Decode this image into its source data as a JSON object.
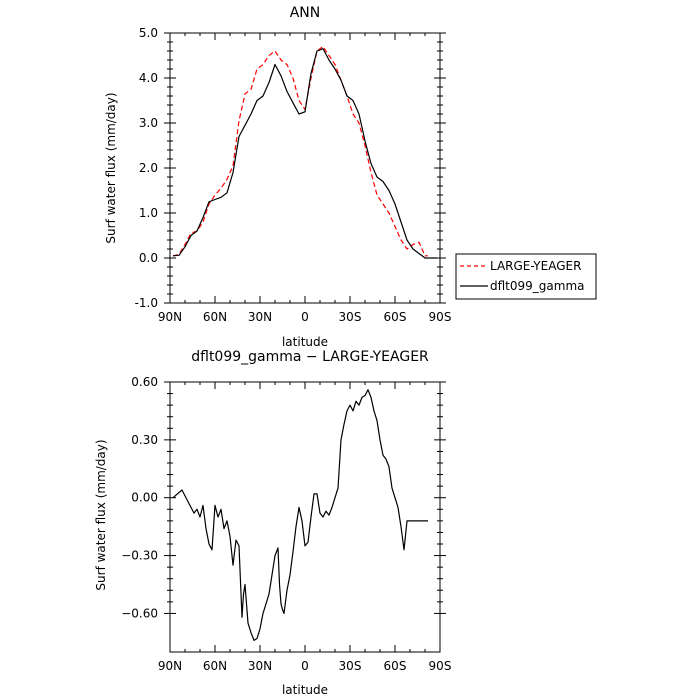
{
  "chart_data": [
    {
      "type": "line",
      "title": "ANN",
      "xlabel": "latitude",
      "ylabel": "Surf water flux (mm/day)",
      "xlim": [
        90,
        -90
      ],
      "ylim": [
        -1.0,
        5.0
      ],
      "x_ticks": [
        90,
        60,
        30,
        0,
        -30,
        -60,
        -90
      ],
      "x_tick_labels": [
        "90N",
        "60N",
        "30N",
        "0",
        "30S",
        "60S",
        "90S"
      ],
      "y_ticks": [
        -1.0,
        0.0,
        1.0,
        2.0,
        3.0,
        4.0,
        5.0
      ],
      "y_tick_labels": [
        "-1.0",
        "0.0",
        "1.0",
        "2.0",
        "3.0",
        "4.0",
        "5.0"
      ],
      "grid": false,
      "legend_position": "right, outside plot",
      "series": [
        {
          "name": "LARGE-YEAGER",
          "color": "#ff0000",
          "style": "dashed",
          "x": [
            88,
            84,
            80,
            76,
            72,
            68,
            64,
            60,
            56,
            52,
            48,
            44,
            40,
            36,
            32,
            28,
            24,
            20,
            16,
            12,
            8,
            4,
            0,
            -4,
            -8,
            -12,
            -16,
            -20,
            -24,
            -28,
            -32,
            -36,
            -40,
            -44,
            -48,
            -52,
            -56,
            -60,
            -64,
            -68,
            -72,
            -76,
            -80,
            -82
          ],
          "values": [
            0.05,
            0.08,
            0.3,
            0.55,
            0.6,
            0.8,
            1.2,
            1.4,
            1.55,
            1.75,
            2.05,
            3.05,
            3.65,
            3.75,
            4.2,
            4.3,
            4.5,
            4.6,
            4.4,
            4.3,
            4.0,
            3.5,
            3.3,
            4.0,
            4.6,
            4.7,
            4.5,
            4.3,
            3.95,
            3.6,
            3.2,
            3.0,
            2.5,
            1.9,
            1.4,
            1.2,
            1.0,
            0.7,
            0.4,
            0.2,
            0.3,
            0.35,
            0.05,
            0.05
          ]
        },
        {
          "name": "dflt099_gamma",
          "color": "#000000",
          "style": "solid",
          "x": [
            88,
            84,
            80,
            76,
            72,
            68,
            64,
            60,
            56,
            52,
            48,
            44,
            40,
            36,
            32,
            28,
            24,
            20,
            16,
            12,
            8,
            4,
            0,
            -4,
            -8,
            -12,
            -16,
            -20,
            -24,
            -28,
            -32,
            -36,
            -40,
            -44,
            -48,
            -52,
            -56,
            -60,
            -64,
            -68,
            -72,
            -76,
            -80,
            -84,
            -88
          ],
          "values": [
            0.05,
            0.06,
            0.25,
            0.5,
            0.6,
            0.9,
            1.25,
            1.3,
            1.35,
            1.45,
            1.9,
            2.7,
            2.95,
            3.2,
            3.5,
            3.6,
            3.9,
            4.3,
            4.05,
            3.7,
            3.45,
            3.2,
            3.25,
            4.1,
            4.6,
            4.65,
            4.4,
            4.2,
            3.95,
            3.6,
            3.5,
            3.2,
            2.6,
            2.1,
            1.8,
            1.7,
            1.5,
            1.2,
            0.8,
            0.4,
            0.2,
            0.1,
            0.0,
            0.0,
            0.0
          ]
        }
      ]
    },
    {
      "type": "line",
      "title": "dflt099_gamma − LARGE-YEAGER",
      "xlabel": "latitude",
      "ylabel": "Surf water flux (mm/day)",
      "xlim": [
        90,
        -90
      ],
      "ylim": [
        -0.8,
        0.6
      ],
      "x_ticks": [
        90,
        60,
        30,
        0,
        -30,
        -60,
        -90
      ],
      "x_tick_labels": [
        "90N",
        "60N",
        "30N",
        "0",
        "30S",
        "60S",
        "90S"
      ],
      "y_ticks": [
        -0.6,
        -0.3,
        0.0,
        0.3,
        0.6
      ],
      "y_tick_labels": [
        "−0.60",
        "−0.30",
        "0.00",
        "0.30",
        "0.60"
      ],
      "grid": false,
      "series": [
        {
          "color": "#000000",
          "style": "solid",
          "x": [
            88,
            82,
            78,
            76,
            74,
            72,
            70,
            68,
            66,
            64,
            62,
            60,
            58,
            56,
            54,
            52,
            50,
            48,
            46,
            44,
            42,
            41,
            40,
            38,
            36,
            34,
            32,
            30,
            28,
            26,
            24,
            22,
            20,
            18,
            17,
            16,
            15,
            14,
            12,
            10,
            8,
            6,
            4,
            2,
            0,
            -2,
            -4,
            -6,
            -8,
            -10,
            -12,
            -14,
            -16,
            -18,
            -20,
            -22,
            -24,
            -26,
            -28,
            -30,
            -32,
            -34,
            -36,
            -38,
            -40,
            -42,
            -44,
            -46,
            -48,
            -50,
            -52,
            -54,
            -56,
            -58,
            -60,
            -62,
            -64,
            -66,
            -68,
            -70,
            -72,
            -74,
            -76,
            -78,
            -80,
            -82
          ],
          "values": [
            0.0,
            0.04,
            -0.02,
            -0.05,
            -0.08,
            -0.06,
            -0.1,
            -0.04,
            -0.16,
            -0.24,
            -0.27,
            -0.04,
            -0.1,
            -0.06,
            -0.16,
            -0.12,
            -0.2,
            -0.35,
            -0.22,
            -0.25,
            -0.62,
            -0.5,
            -0.45,
            -0.65,
            -0.7,
            -0.74,
            -0.73,
            -0.68,
            -0.6,
            -0.55,
            -0.5,
            -0.4,
            -0.3,
            -0.26,
            -0.45,
            -0.55,
            -0.58,
            -0.6,
            -0.48,
            -0.4,
            -0.28,
            -0.15,
            -0.05,
            -0.12,
            -0.25,
            -0.23,
            -0.1,
            0.02,
            0.02,
            -0.08,
            -0.1,
            -0.07,
            -0.09,
            -0.05,
            0.0,
            0.05,
            0.3,
            0.38,
            0.45,
            0.48,
            0.45,
            0.5,
            0.48,
            0.52,
            0.53,
            0.56,
            0.52,
            0.45,
            0.4,
            0.3,
            0.22,
            0.2,
            0.16,
            0.05,
            0.0,
            -0.05,
            -0.15,
            -0.27,
            -0.12,
            -0.12,
            -0.12,
            -0.12,
            -0.12,
            -0.12,
            -0.12,
            -0.12
          ]
        }
      ]
    }
  ]
}
